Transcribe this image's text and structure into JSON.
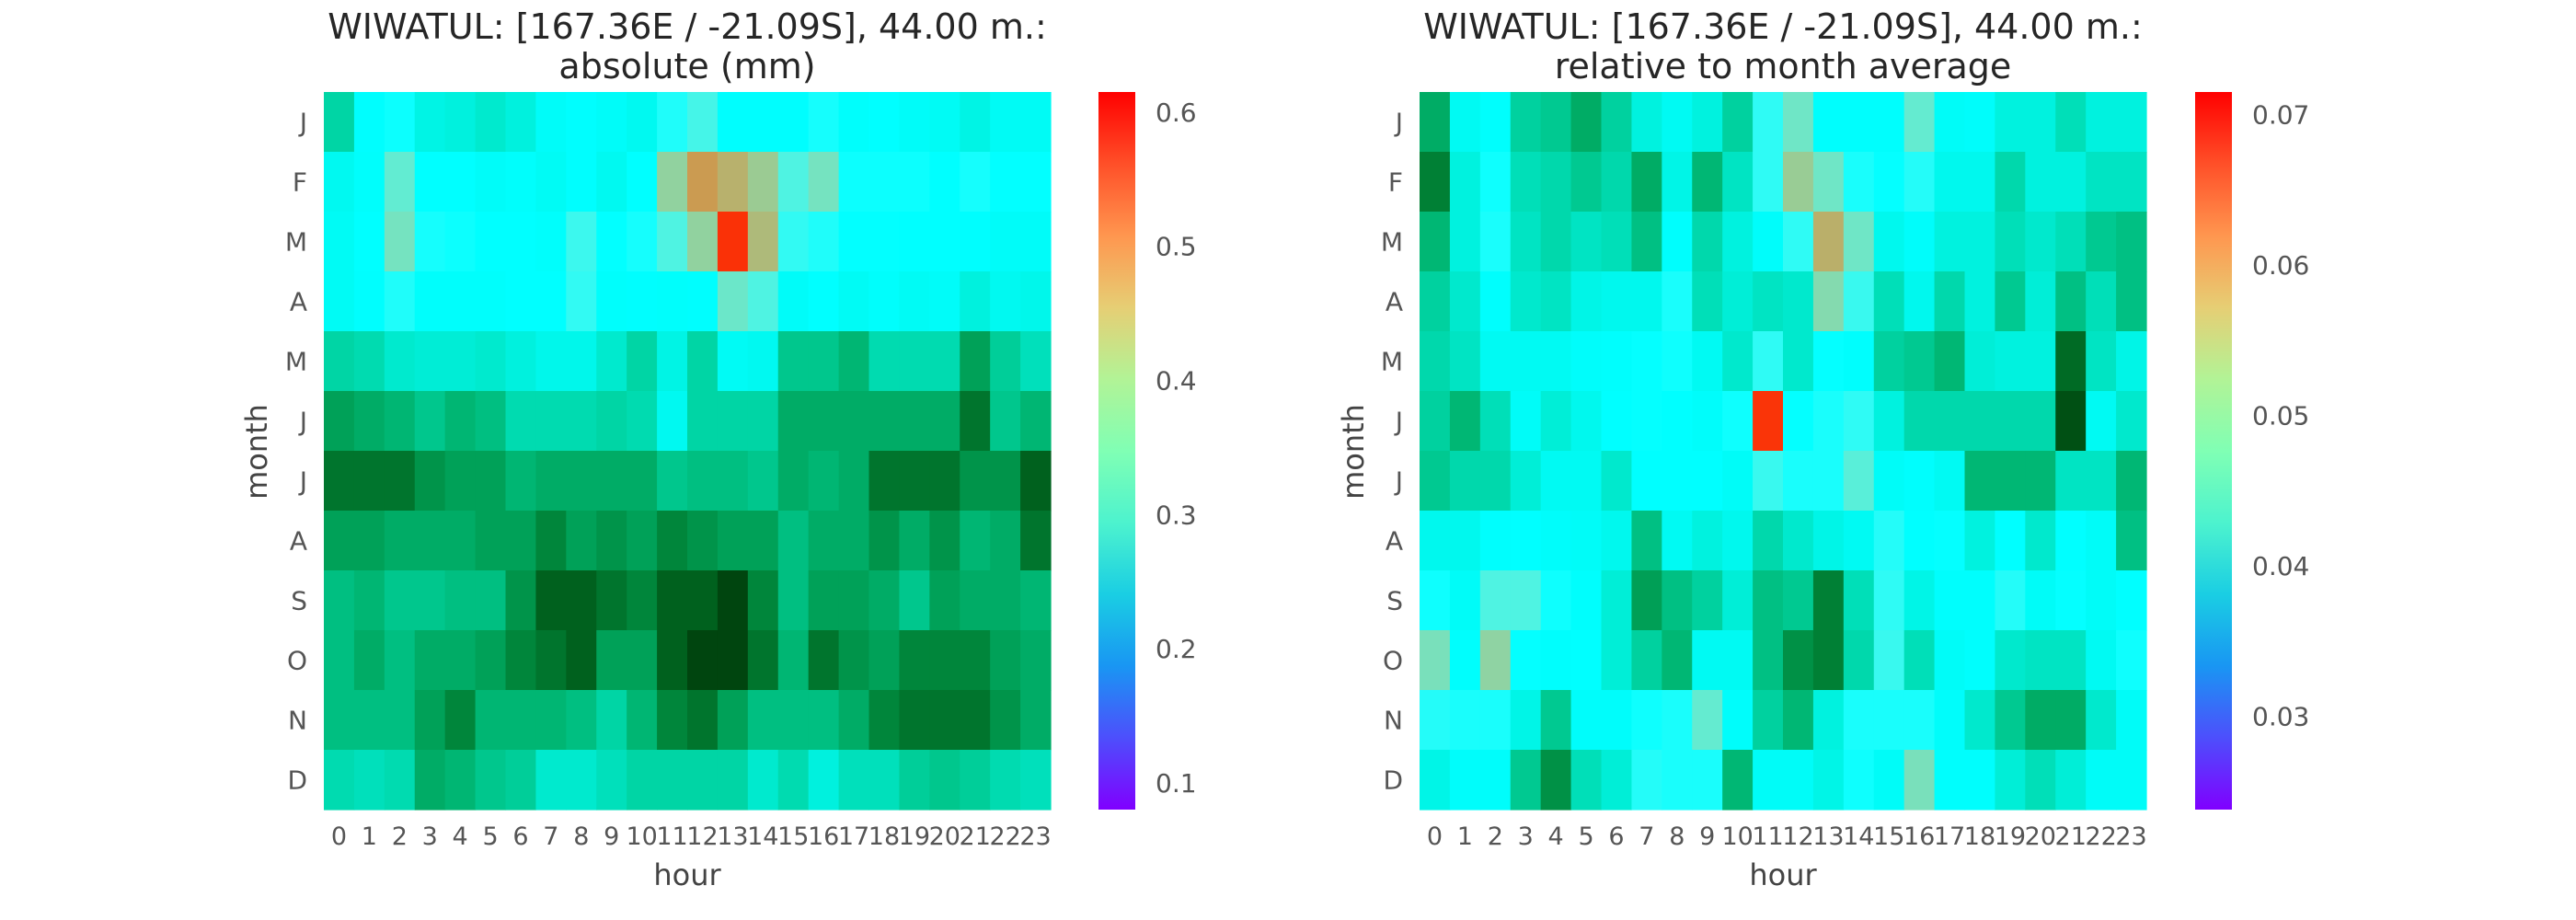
{
  "colors": {
    "colormap": "rainbow",
    "background": "#ffffff",
    "text": "#262626"
  },
  "chart_data": [
    {
      "type": "heatmap",
      "title_line1": "WIWATUL: [167.36E / -21.09S], 44.00 m.:",
      "title_line2": "absolute (mm)",
      "xlabel": "hour",
      "ylabel": "month",
      "x": [
        "0",
        "1",
        "2",
        "3",
        "4",
        "5",
        "6",
        "7",
        "8",
        "9",
        "10",
        "11",
        "12",
        "13",
        "14",
        "15",
        "16",
        "17",
        "18",
        "19",
        "20",
        "21",
        "22",
        "23"
      ],
      "y": [
        "J",
        "F",
        "M",
        "A",
        "M",
        "J",
        "J",
        "A",
        "S",
        "O",
        "N",
        "D"
      ],
      "vmin": 0.08,
      "vmax": 0.615,
      "colorbar_ticks": [
        "0.1",
        "0.2",
        "0.3",
        "0.4",
        "0.5",
        "0.6"
      ],
      "values": [
        [
          0.2,
          0.33,
          0.36,
          0.27,
          0.26,
          0.24,
          0.26,
          0.31,
          0.33,
          0.31,
          0.29,
          0.38,
          0.42,
          0.33,
          0.33,
          0.33,
          0.37,
          0.32,
          0.34,
          0.31,
          0.3,
          0.27,
          0.3,
          0.3
        ],
        [
          0.29,
          0.32,
          0.45,
          0.34,
          0.34,
          0.31,
          0.32,
          0.3,
          0.33,
          0.29,
          0.34,
          0.5,
          0.56,
          0.54,
          0.51,
          0.43,
          0.47,
          0.36,
          0.36,
          0.36,
          0.34,
          0.37,
          0.35,
          0.35
        ],
        [
          0.3,
          0.34,
          0.47,
          0.37,
          0.36,
          0.34,
          0.34,
          0.32,
          0.41,
          0.35,
          0.37,
          0.43,
          0.5,
          0.61,
          0.53,
          0.4,
          0.38,
          0.35,
          0.35,
          0.34,
          0.34,
          0.33,
          0.31,
          0.31
        ],
        [
          0.3,
          0.33,
          0.38,
          0.32,
          0.32,
          0.32,
          0.34,
          0.34,
          0.4,
          0.32,
          0.33,
          0.32,
          0.33,
          0.46,
          0.43,
          0.31,
          0.34,
          0.3,
          0.32,
          0.3,
          0.31,
          0.26,
          0.29,
          0.28
        ],
        [
          0.2,
          0.21,
          0.24,
          0.25,
          0.25,
          0.24,
          0.26,
          0.28,
          0.28,
          0.24,
          0.2,
          0.27,
          0.2,
          0.3,
          0.29,
          0.18,
          0.18,
          0.16,
          0.21,
          0.21,
          0.21,
          0.14,
          0.19,
          0.22
        ],
        [
          0.14,
          0.15,
          0.16,
          0.18,
          0.16,
          0.17,
          0.21,
          0.21,
          0.21,
          0.2,
          0.21,
          0.29,
          0.2,
          0.2,
          0.2,
          0.15,
          0.15,
          0.15,
          0.15,
          0.15,
          0.15,
          0.11,
          0.18,
          0.16
        ],
        [
          0.11,
          0.11,
          0.11,
          0.13,
          0.14,
          0.14,
          0.16,
          0.15,
          0.15,
          0.15,
          0.15,
          0.18,
          0.17,
          0.17,
          0.18,
          0.15,
          0.16,
          0.15,
          0.11,
          0.11,
          0.11,
          0.13,
          0.13,
          0.1
        ],
        [
          0.14,
          0.14,
          0.15,
          0.15,
          0.15,
          0.14,
          0.14,
          0.12,
          0.14,
          0.13,
          0.14,
          0.12,
          0.13,
          0.14,
          0.14,
          0.17,
          0.15,
          0.15,
          0.13,
          0.15,
          0.13,
          0.16,
          0.15,
          0.11
        ],
        [
          0.17,
          0.16,
          0.18,
          0.18,
          0.17,
          0.17,
          0.13,
          0.1,
          0.1,
          0.11,
          0.12,
          0.1,
          0.1,
          0.09,
          0.12,
          0.17,
          0.14,
          0.14,
          0.15,
          0.18,
          0.14,
          0.15,
          0.15,
          0.16
        ],
        [
          0.17,
          0.15,
          0.17,
          0.15,
          0.15,
          0.14,
          0.12,
          0.11,
          0.1,
          0.14,
          0.14,
          0.1,
          0.09,
          0.09,
          0.11,
          0.16,
          0.11,
          0.13,
          0.14,
          0.12,
          0.12,
          0.12,
          0.14,
          0.15
        ],
        [
          0.17,
          0.17,
          0.17,
          0.14,
          0.12,
          0.16,
          0.16,
          0.16,
          0.17,
          0.2,
          0.16,
          0.12,
          0.11,
          0.14,
          0.17,
          0.17,
          0.17,
          0.15,
          0.12,
          0.11,
          0.11,
          0.11,
          0.13,
          0.15
        ],
        [
          0.21,
          0.22,
          0.21,
          0.15,
          0.16,
          0.18,
          0.19,
          0.24,
          0.24,
          0.22,
          0.2,
          0.2,
          0.2,
          0.2,
          0.24,
          0.21,
          0.26,
          0.22,
          0.22,
          0.19,
          0.18,
          0.19,
          0.21,
          0.22
        ]
      ]
    },
    {
      "type": "heatmap",
      "title_line1": "WIWATUL: [167.36E / -21.09S], 44.00 m.:",
      "title_line2": "relative to month average",
      "xlabel": "hour",
      "ylabel": "month",
      "x": [
        "0",
        "1",
        "2",
        "3",
        "4",
        "5",
        "6",
        "7",
        "8",
        "9",
        "10",
        "11",
        "12",
        "13",
        "14",
        "15",
        "16",
        "17",
        "18",
        "19",
        "20",
        "21",
        "22",
        "23"
      ],
      "y": [
        "J",
        "F",
        "M",
        "A",
        "M",
        "J",
        "J",
        "A",
        "S",
        "O",
        "N",
        "D"
      ],
      "vmin": 0.0238,
      "vmax": 0.0715,
      "colorbar_ticks": [
        "0.03",
        "0.04",
        "0.05",
        "0.06",
        "0.07"
      ],
      "values": [
        [
          0.03,
          0.043,
          0.046,
          0.034,
          0.033,
          0.03,
          0.034,
          0.04,
          0.043,
          0.04,
          0.034,
          0.052,
          0.058,
          0.046,
          0.046,
          0.046,
          0.057,
          0.044,
          0.045,
          0.04,
          0.04,
          0.036,
          0.04,
          0.04
        ],
        [
          0.027,
          0.04,
          0.049,
          0.036,
          0.035,
          0.033,
          0.035,
          0.03,
          0.041,
          0.031,
          0.037,
          0.052,
          0.062,
          0.058,
          0.05,
          0.048,
          0.051,
          0.042,
          0.042,
          0.035,
          0.04,
          0.04,
          0.037,
          0.037
        ],
        [
          0.031,
          0.04,
          0.05,
          0.037,
          0.035,
          0.037,
          0.036,
          0.032,
          0.046,
          0.035,
          0.04,
          0.045,
          0.052,
          0.065,
          0.058,
          0.042,
          0.045,
          0.04,
          0.04,
          0.036,
          0.038,
          0.036,
          0.033,
          0.032
        ],
        [
          0.034,
          0.038,
          0.046,
          0.038,
          0.037,
          0.041,
          0.042,
          0.042,
          0.05,
          0.036,
          0.039,
          0.037,
          0.038,
          0.06,
          0.053,
          0.036,
          0.042,
          0.035,
          0.04,
          0.033,
          0.039,
          0.032,
          0.036,
          0.032
        ],
        [
          0.035,
          0.037,
          0.043,
          0.043,
          0.043,
          0.045,
          0.046,
          0.048,
          0.049,
          0.043,
          0.038,
          0.052,
          0.038,
          0.048,
          0.046,
          0.034,
          0.033,
          0.031,
          0.039,
          0.04,
          0.04,
          0.026,
          0.037,
          0.041
        ],
        [
          0.034,
          0.031,
          0.036,
          0.044,
          0.039,
          0.042,
          0.047,
          0.048,
          0.047,
          0.045,
          0.049,
          0.071,
          0.048,
          0.05,
          0.052,
          0.04,
          0.035,
          0.035,
          0.035,
          0.035,
          0.035,
          0.025,
          0.043,
          0.038
        ],
        [
          0.033,
          0.035,
          0.035,
          0.039,
          0.043,
          0.043,
          0.038,
          0.047,
          0.047,
          0.047,
          0.044,
          0.053,
          0.05,
          0.05,
          0.056,
          0.044,
          0.046,
          0.043,
          0.031,
          0.031,
          0.031,
          0.037,
          0.037,
          0.031
        ],
        [
          0.042,
          0.042,
          0.046,
          0.047,
          0.045,
          0.044,
          0.042,
          0.032,
          0.043,
          0.04,
          0.042,
          0.035,
          0.038,
          0.041,
          0.043,
          0.051,
          0.047,
          0.048,
          0.04,
          0.047,
          0.038,
          0.047,
          0.044,
          0.032
        ],
        [
          0.049,
          0.044,
          0.055,
          0.055,
          0.049,
          0.046,
          0.039,
          0.029,
          0.032,
          0.034,
          0.039,
          0.032,
          0.033,
          0.027,
          0.036,
          0.052,
          0.041,
          0.046,
          0.046,
          0.051,
          0.044,
          0.048,
          0.044,
          0.047
        ],
        [
          0.059,
          0.046,
          0.061,
          0.048,
          0.046,
          0.047,
          0.039,
          0.034,
          0.031,
          0.043,
          0.043,
          0.032,
          0.028,
          0.027,
          0.035,
          0.053,
          0.036,
          0.044,
          0.046,
          0.038,
          0.037,
          0.037,
          0.043,
          0.049
        ],
        [
          0.051,
          0.05,
          0.05,
          0.041,
          0.033,
          0.045,
          0.045,
          0.049,
          0.05,
          0.057,
          0.045,
          0.034,
          0.031,
          0.04,
          0.05,
          0.05,
          0.05,
          0.045,
          0.038,
          0.033,
          0.03,
          0.03,
          0.038,
          0.044
        ],
        [
          0.041,
          0.045,
          0.045,
          0.033,
          0.028,
          0.036,
          0.039,
          0.051,
          0.05,
          0.05,
          0.031,
          0.044,
          0.044,
          0.041,
          0.049,
          0.044,
          0.059,
          0.046,
          0.046,
          0.039,
          0.036,
          0.039,
          0.044,
          0.044
        ]
      ]
    }
  ]
}
